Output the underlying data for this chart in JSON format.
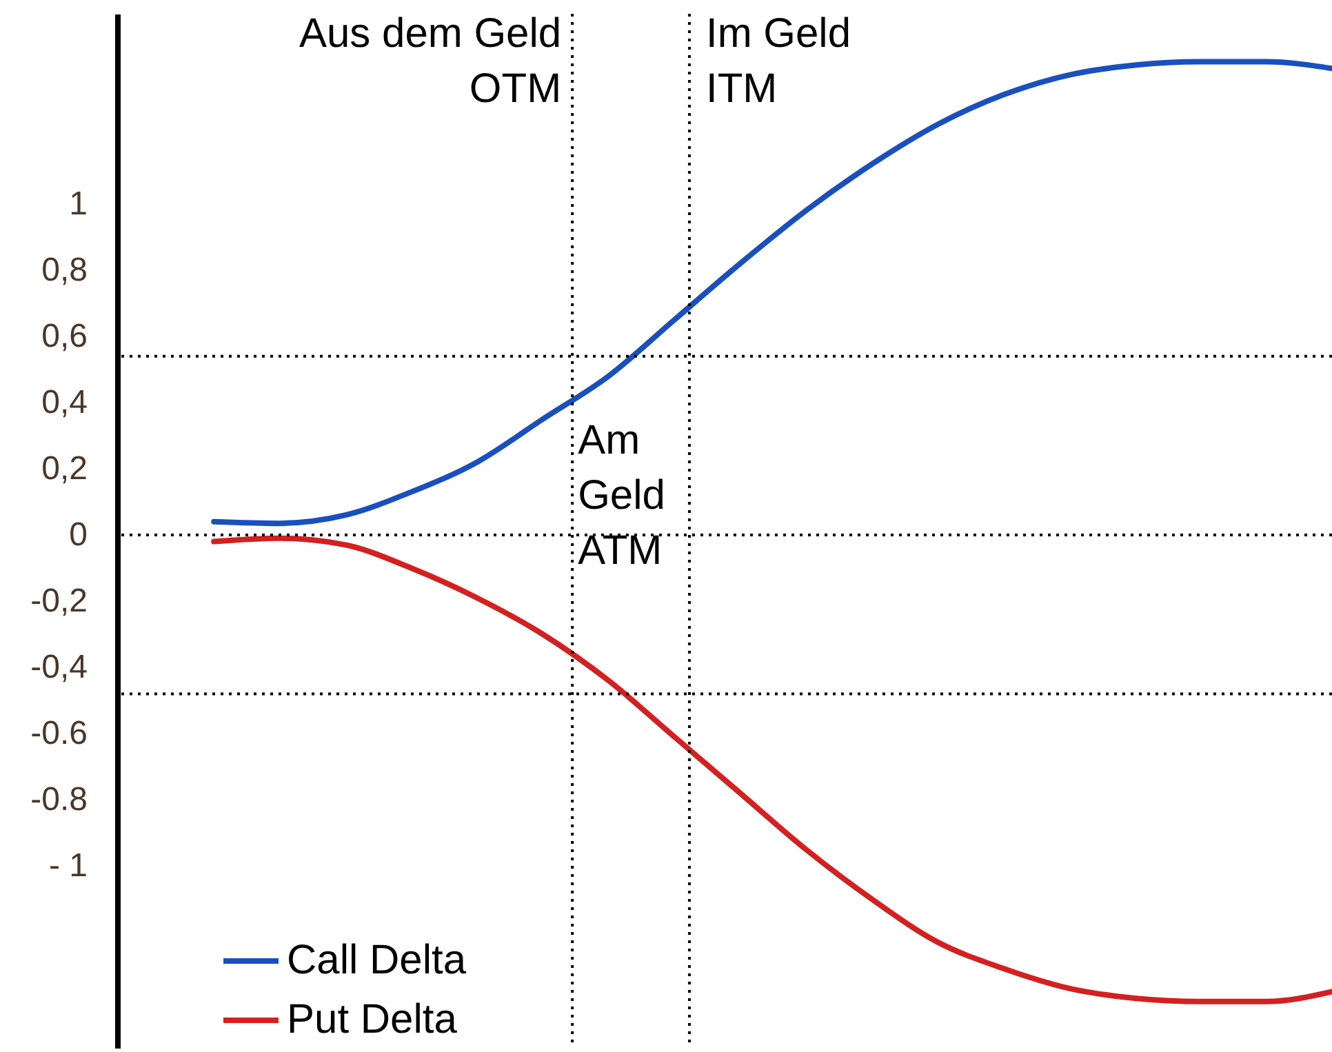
{
  "chart_data": {
    "type": "line",
    "ylim": [
      -1.55,
      1.575
    ],
    "yticks": [
      1,
      {
        "value": 0.8,
        "label": "0,8"
      },
      {
        "value": 0.6,
        "label": "0,6"
      },
      {
        "value": 0.4,
        "label": "0,4"
      },
      {
        "value": 0.2,
        "label": "0,2"
      },
      0,
      {
        "value": -0.2,
        "label": "-0,2"
      },
      {
        "value": -0.4,
        "label": "-0,4"
      },
      {
        "value": -0.6,
        "label": "-0.6"
      },
      {
        "value": -0.8,
        "label": "-0.8"
      },
      {
        "value": -1,
        "label": "- 1"
      }
    ],
    "tick_labels": "y",
    "legend": "bottom left",
    "line_style": "solid",
    "categories": [
      null,
      null,
      null,
      null,
      null,
      null,
      null,
      null,
      null,
      null,
      null,
      null,
      null,
      null,
      null,
      null,
      null,
      null
    ],
    "series": [
      {
        "name": "Call  Delta",
        "color": "#1a4fbf",
        "values": [
          0.04,
          0.035,
          0.06,
          0.13,
          0.22,
          0.35,
          0.48,
          0.65,
          0.82,
          0.98,
          1.12,
          1.24,
          1.33,
          1.39,
          1.42,
          1.43,
          1.43,
          1.41
        ]
      },
      {
        "name": "Put  Delta",
        "color": "#d42020",
        "values": [
          -0.02,
          -0.01,
          -0.03,
          -0.1,
          -0.19,
          -0.3,
          -0.44,
          -0.61,
          -0.78,
          -0.95,
          -1.1,
          -1.23,
          -1.31,
          -1.37,
          -1.4,
          -1.41,
          -1.41,
          -1.38
        ]
      }
    ],
    "ref_lines": [
      {
        "axis": "y",
        "value": 0.54,
        "line_style": "dotted"
      },
      {
        "axis": "y",
        "value": 0,
        "line_style": "dotted"
      },
      {
        "axis": "y",
        "value": -0.48,
        "line_style": "dotted"
      }
    ],
    "annotations": [
      "Aus dem Geld\nOTM",
      "Im Geld\nITM",
      "Am\nGeld\nATM"
    ]
  }
}
